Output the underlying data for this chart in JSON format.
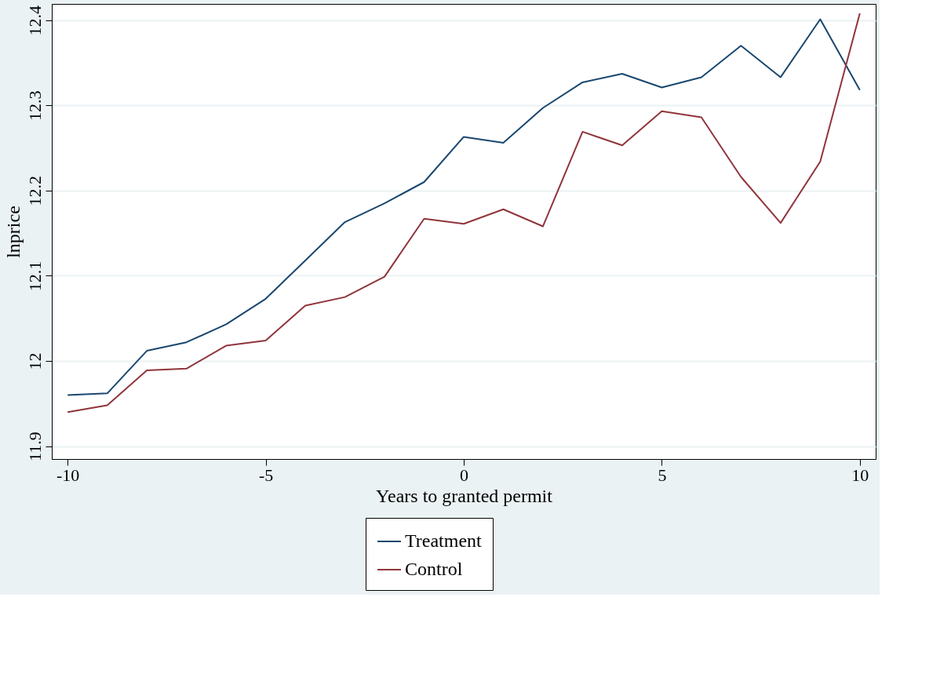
{
  "chart_data": {
    "type": "line",
    "xlabel": "Years to granted permit",
    "ylabel": "lnprice",
    "x": [
      -10,
      -9,
      -8,
      -7,
      -6,
      -5,
      -4,
      -3,
      -2,
      -1,
      0,
      1,
      2,
      3,
      4,
      5,
      6,
      7,
      8,
      9,
      10
    ],
    "series": [
      {
        "name": "Treatment",
        "color": "#1a476f",
        "values": [
          11.96,
          11.962,
          12.012,
          12.022,
          12.043,
          12.073,
          12.118,
          12.163,
          12.185,
          12.21,
          12.263,
          12.256,
          12.297,
          12.327,
          12.337,
          12.321,
          12.333,
          12.37,
          12.333,
          12.401,
          12.318
        ]
      },
      {
        "name": "Control",
        "color": "#90353b",
        "values": [
          11.94,
          11.948,
          11.989,
          11.991,
          12.018,
          12.024,
          12.065,
          12.075,
          12.099,
          12.167,
          12.161,
          12.178,
          12.158,
          12.269,
          12.253,
          12.293,
          12.286,
          12.216,
          12.162,
          12.234,
          12.408
        ]
      }
    ],
    "xlim": [
      -10.4,
      10.4
    ],
    "xticks": [
      -10,
      -5,
      0,
      5,
      10
    ],
    "ylim": [
      11.885,
      12.419
    ],
    "yticks": [
      11.9,
      12,
      12.1,
      12.2,
      12.3,
      12.4
    ],
    "grid": "y",
    "legend": "bottom",
    "marker": "none",
    "line_style": "solid"
  }
}
